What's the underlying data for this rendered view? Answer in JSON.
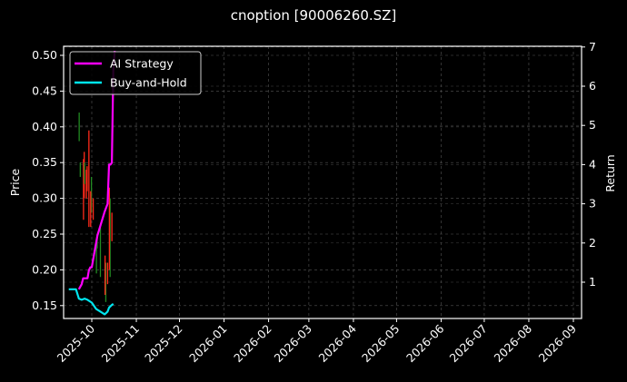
{
  "chart_data": {
    "type": "line",
    "title": "cnoption [90006260.SZ]",
    "xlabel": "",
    "ylabel": "Price",
    "y2label": "Return",
    "ylim": [
      0.13,
      0.51
    ],
    "y2lim": [
      0.1,
      7.0
    ],
    "yticks": [
      "0.15",
      "0.20",
      "0.25",
      "0.30",
      "0.35",
      "0.40",
      "0.45",
      "0.50"
    ],
    "y2ticks": [
      "1",
      "2",
      "3",
      "4",
      "5",
      "6",
      "7"
    ],
    "xticks": [
      "2025-10",
      "2025-11",
      "2025-12",
      "2026-01",
      "2026-02",
      "2026-03",
      "2026-04",
      "2026-05",
      "2026-06",
      "2026-07",
      "2026-08",
      "2026-09"
    ],
    "grid": true,
    "legend_position": "upper left",
    "legend": [
      {
        "name": "AI Strategy",
        "color": "#ff00ff"
      },
      {
        "name": "Buy-and-Hold",
        "color": "#00e5ee"
      }
    ],
    "series": [
      {
        "name": "AI Strategy",
        "axis": "right",
        "color": "#ff00ff",
        "x": [
          "2025-09-22",
          "2025-09-24",
          "2025-09-25",
          "2025-09-28",
          "2025-09-29",
          "2025-09-30",
          "2025-10-01",
          "2025-10-03",
          "2025-10-05",
          "2025-10-10",
          "2025-10-12",
          "2025-10-13",
          "2025-10-14",
          "2025-10-15",
          "2025-10-16",
          "2025-10-17"
        ],
        "values": [
          0.82,
          0.95,
          1.1,
          1.1,
          1.3,
          1.38,
          1.38,
          1.8,
          2.2,
          2.8,
          3.0,
          4.0,
          4.0,
          4.05,
          6.4,
          6.9
        ]
      },
      {
        "name": "Buy-and-Hold",
        "axis": "right",
        "color": "#00e5ee",
        "x": [
          "2025-09-15",
          "2025-09-20",
          "2025-09-22",
          "2025-09-24",
          "2025-09-26",
          "2025-09-28",
          "2025-10-01",
          "2025-10-04",
          "2025-10-07",
          "2025-10-10",
          "2025-10-12",
          "2025-10-13",
          "2025-10-15",
          "2025-10-16"
        ],
        "values": [
          0.82,
          0.82,
          0.58,
          0.55,
          0.58,
          0.55,
          0.48,
          0.32,
          0.25,
          0.18,
          0.25,
          0.35,
          0.42,
          0.45
        ]
      }
    ],
    "candles": {
      "axis": "left",
      "up_color": "#228B22",
      "down_color": "#ff2a1a",
      "items": [
        {
          "x": "2025-09-23",
          "low": 0.38,
          "high": 0.42,
          "dir": "up"
        },
        {
          "x": "2025-09-23",
          "low": 0.33,
          "high": 0.35,
          "dir": "up"
        },
        {
          "x": "2025-09-25",
          "low": 0.3,
          "high": 0.365,
          "dir": "down"
        },
        {
          "x": "2025-09-26",
          "low": 0.27,
          "high": 0.355,
          "dir": "down"
        },
        {
          "x": "2025-09-26",
          "low": 0.32,
          "high": 0.35,
          "dir": "up"
        },
        {
          "x": "2025-09-27",
          "low": 0.31,
          "high": 0.345,
          "dir": "down"
        },
        {
          "x": "2025-09-28",
          "low": 0.3,
          "high": 0.34,
          "dir": "down"
        },
        {
          "x": "2025-09-29",
          "low": 0.26,
          "high": 0.395,
          "dir": "down"
        },
        {
          "x": "2025-09-30",
          "low": 0.28,
          "high": 0.33,
          "dir": "up"
        },
        {
          "x": "2025-10-01",
          "low": 0.26,
          "high": 0.31,
          "dir": "down"
        },
        {
          "x": "2025-10-02",
          "low": 0.27,
          "high": 0.3,
          "dir": "down"
        },
        {
          "x": "2025-10-04",
          "low": 0.23,
          "high": 0.25,
          "dir": "up"
        },
        {
          "x": "2025-10-05",
          "low": 0.195,
          "high": 0.24,
          "dir": "up"
        },
        {
          "x": "2025-10-07",
          "low": 0.19,
          "high": 0.26,
          "dir": "up"
        },
        {
          "x": "2025-10-10",
          "low": 0.155,
          "high": 0.21,
          "dir": "up"
        },
        {
          "x": "2025-10-11",
          "low": 0.165,
          "high": 0.22,
          "dir": "down"
        },
        {
          "x": "2025-10-12",
          "low": 0.18,
          "high": 0.21,
          "dir": "down"
        },
        {
          "x": "2025-10-13",
          "low": 0.19,
          "high": 0.3,
          "dir": "up"
        },
        {
          "x": "2025-10-14",
          "low": 0.2,
          "high": 0.315,
          "dir": "down"
        },
        {
          "x": "2025-10-15",
          "low": 0.24,
          "high": 0.28,
          "dir": "down"
        }
      ]
    }
  }
}
